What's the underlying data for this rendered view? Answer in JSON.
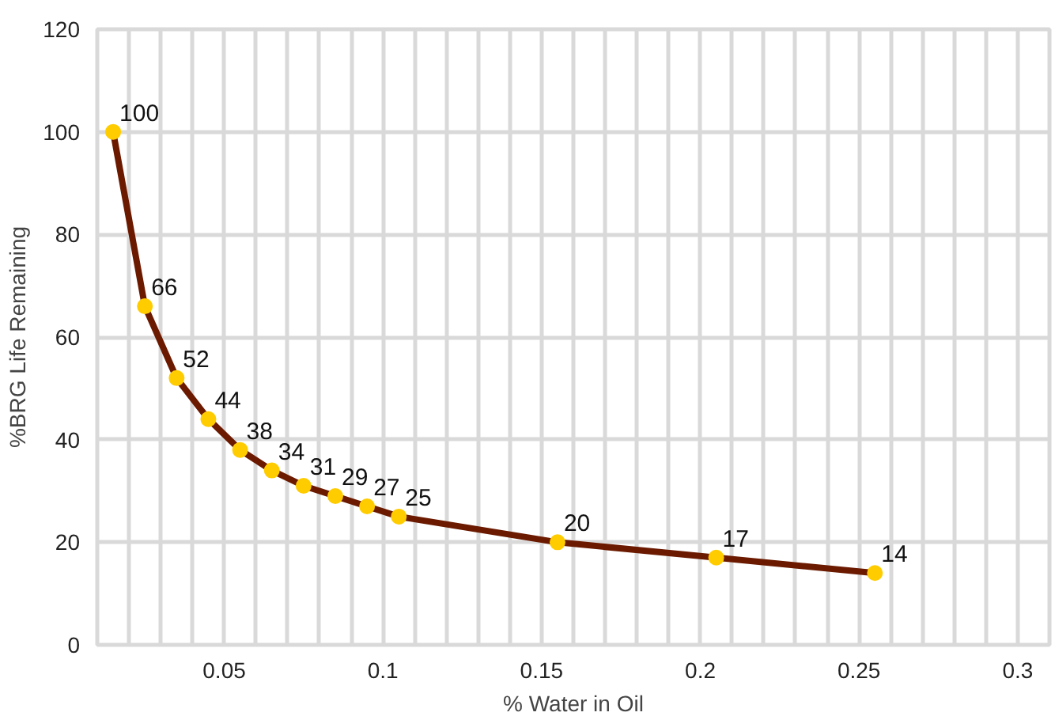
{
  "chart_data": {
    "type": "line",
    "xlabel": "% Water in Oil",
    "ylabel": "%BRG Life Remaining",
    "x": [
      0.015,
      0.025,
      0.035,
      0.045,
      0.055,
      0.065,
      0.075,
      0.085,
      0.095,
      0.105,
      0.155,
      0.205,
      0.255
    ],
    "series": [
      {
        "color": "#6b1a00",
        "colors": [
          "#ffcc00",
          "#ffcc00",
          "#ffcc00",
          "#ffcc00",
          "#ffcc00",
          "#ffcc00",
          "#ffcc00",
          "#ffcc00",
          "#ffcc00",
          "#ffcc00",
          "#ffcc00",
          "#ffcc00",
          "#ffcc00"
        ],
        "values": [
          100,
          66,
          52,
          44,
          38,
          34,
          31,
          29,
          27,
          25,
          20,
          17,
          14
        ]
      }
    ],
    "data_labels": true,
    "marker": "circle",
    "line_style": "solid",
    "grid": true,
    "xlim": [
      0.01,
      0.31
    ],
    "ylim": [
      0,
      120
    ],
    "xticks": [
      {
        "value": 0.02,
        "label": null
      },
      {
        "value": 0.03,
        "label": null
      },
      {
        "value": 0.04,
        "label": null
      },
      0.05,
      {
        "value": 0.06,
        "label": null
      },
      {
        "value": 0.07,
        "label": null
      },
      {
        "value": 0.08,
        "label": null
      },
      {
        "value": 0.09,
        "label": null
      },
      0.1,
      {
        "value": 0.11,
        "label": null
      },
      {
        "value": 0.12,
        "label": null
      },
      {
        "value": 0.13,
        "label": null
      },
      {
        "value": 0.14,
        "label": null
      },
      0.15,
      {
        "value": 0.16,
        "label": null
      },
      {
        "value": 0.17,
        "label": null
      },
      {
        "value": 0.18,
        "label": null
      },
      {
        "value": 0.19,
        "label": null
      },
      0.2,
      {
        "value": 0.21,
        "label": null
      },
      {
        "value": 0.22,
        "label": null
      },
      {
        "value": 0.23,
        "label": null
      },
      {
        "value": 0.24,
        "label": null
      },
      0.25,
      {
        "value": 0.26,
        "label": null
      },
      {
        "value": 0.27,
        "label": null
      },
      {
        "value": 0.28,
        "label": null
      },
      {
        "value": 0.29,
        "label": null
      },
      0.3
    ],
    "yticks": [
      0,
      20,
      40,
      60,
      80,
      100,
      120
    ]
  }
}
